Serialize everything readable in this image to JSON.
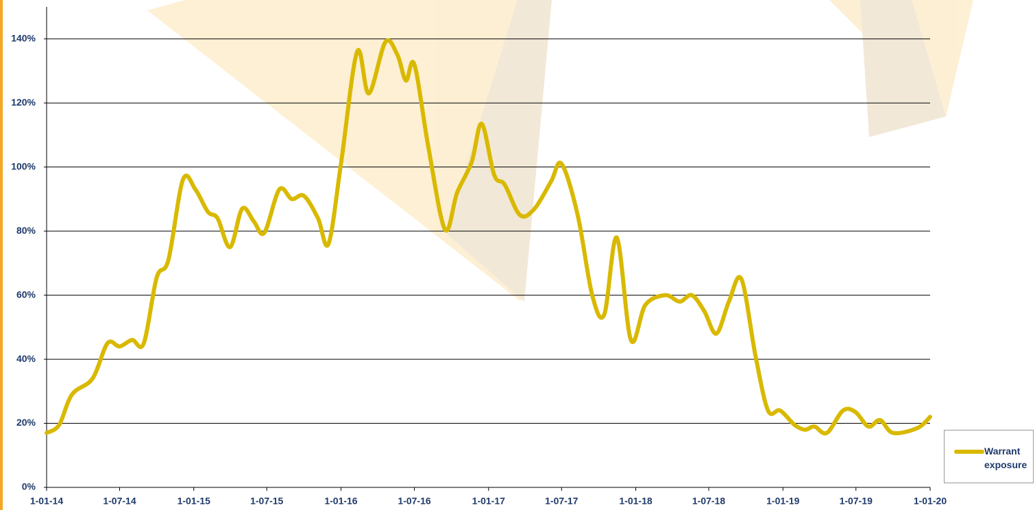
{
  "chart_data": {
    "type": "line",
    "x": [
      "2014-01-01",
      "2014-02-01",
      "2014-03-05",
      "2014-04-25",
      "2014-06-01",
      "2014-07-01",
      "2014-08-01",
      "2014-08-30",
      "2014-10-01",
      "2014-10-30",
      "2014-12-05",
      "2015-01-05",
      "2015-02-05",
      "2015-03-01",
      "2015-04-01",
      "2015-05-01",
      "2015-05-30",
      "2015-06-25",
      "2015-08-01",
      "2015-09-01",
      "2015-10-01",
      "2015-11-05",
      "2015-12-01",
      "2016-01-01",
      "2016-02-10",
      "2016-03-10",
      "2016-04-20",
      "2016-05-20",
      "2016-06-10",
      "2016-07-01",
      "2016-08-05",
      "2016-09-15",
      "2016-10-15",
      "2016-11-20",
      "2016-12-15",
      "2017-01-15",
      "2017-02-10",
      "2017-03-20",
      "2017-04-25",
      "2017-06-05",
      "2017-07-01",
      "2017-08-10",
      "2017-09-15",
      "2017-10-15",
      "2017-11-15",
      "2017-12-20",
      "2018-01-25",
      "2018-03-15",
      "2018-04-20",
      "2018-05-20",
      "2018-06-20",
      "2018-07-20",
      "2018-08-20",
      "2018-09-20",
      "2018-10-25",
      "2018-11-25",
      "2018-12-25",
      "2019-01-30",
      "2019-02-25",
      "2019-03-20",
      "2019-04-20",
      "2019-05-30",
      "2019-06-30",
      "2019-08-01",
      "2019-08-30",
      "2019-10-01",
      "2019-11-30",
      "2020-01-01"
    ],
    "series": [
      {
        "name": "Warrant exposure",
        "color": "#d9b900",
        "values": [
          17,
          19.5,
          29,
          34,
          45,
          44,
          46,
          45,
          65.5,
          71,
          96,
          93,
          86,
          84,
          75,
          87,
          83,
          79.5,
          93,
          90,
          91,
          84,
          76,
          101,
          136,
          123,
          139,
          135,
          127,
          132,
          106,
          80.5,
          92,
          101.5,
          113.5,
          97.5,
          94.5,
          85,
          87,
          95.5,
          101,
          85,
          60,
          54,
          78,
          46,
          57,
          60,
          58,
          60,
          55,
          48,
          58,
          65,
          41,
          24,
          24,
          19.5,
          18,
          19,
          17,
          24,
          23.5,
          19,
          21,
          17,
          18.5,
          22
        ]
      }
    ],
    "xlim": [
      "2014-01-01",
      "2020-01-01"
    ],
    "xticks": [
      {
        "value": "2014-01-01",
        "label": "1-01-14"
      },
      {
        "value": "2014-07-01",
        "label": "1-07-14"
      },
      {
        "value": "2015-01-01",
        "label": "1-01-15"
      },
      {
        "value": "2015-07-01",
        "label": "1-07-15"
      },
      {
        "value": "2016-01-01",
        "label": "1-01-16"
      },
      {
        "value": "2016-07-01",
        "label": "1-07-16"
      },
      {
        "value": "2017-01-01",
        "label": "1-01-17"
      },
      {
        "value": "2017-07-01",
        "label": "1-07-17"
      },
      {
        "value": "2018-01-01",
        "label": "1-01-18"
      },
      {
        "value": "2018-07-01",
        "label": "1-07-18"
      },
      {
        "value": "2019-01-01",
        "label": "1-01-19"
      },
      {
        "value": "2019-07-01",
        "label": "1-07-19"
      },
      {
        "value": "2020-01-01",
        "label": "1-01-20"
      }
    ],
    "ylim": [
      0,
      150
    ],
    "yticks": [
      {
        "value": 0,
        "label": "0%"
      },
      {
        "value": 20,
        "label": "20%"
      },
      {
        "value": 40,
        "label": "40%"
      },
      {
        "value": 60,
        "label": "60%"
      },
      {
        "value": 80,
        "label": "80%"
      },
      {
        "value": 100,
        "label": "100%"
      },
      {
        "value": 120,
        "label": "120%"
      },
      {
        "value": 140,
        "label": "140%"
      }
    ],
    "grid": true
  }
}
